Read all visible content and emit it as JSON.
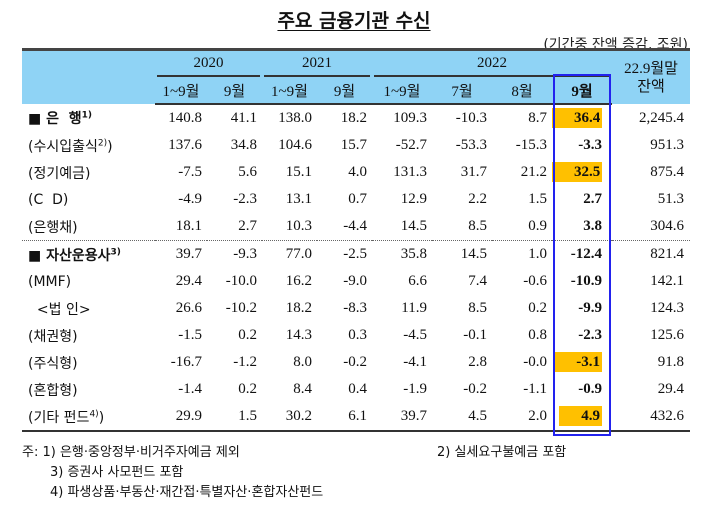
{
  "title": "주요 금융기관 수신",
  "unit": "(기간중 잔액 증감, 조원)",
  "header": {
    "years": [
      "2020",
      "2021",
      "2022"
    ],
    "balance": "22.9월말 잔액",
    "periods": [
      "1~9월",
      "9월",
      "1~9월",
      "9월",
      "1~9월",
      "7월",
      "8월",
      "9월"
    ]
  },
  "rows": [
    {
      "label": "■ 은  행",
      "sup": "1)",
      "group": true,
      "values": [
        "140.8",
        "41.1",
        "138.0",
        "18.2",
        "109.3",
        "-10.3",
        "8.7",
        "36.4",
        "2,245.4"
      ],
      "highlight": true
    },
    {
      "label": "(수시입출식",
      "sup": "2)",
      "label_end": ")",
      "values": [
        "137.6",
        "34.8",
        "104.6",
        "15.7",
        "-52.7",
        "-53.3",
        "-15.3",
        "-3.3",
        "951.3"
      ]
    },
    {
      "label": "(정기예금)",
      "values": [
        "-7.5",
        "5.6",
        "15.1",
        "4.0",
        "131.3",
        "31.7",
        "21.2",
        "32.5",
        "875.4"
      ],
      "highlight": true
    },
    {
      "label": "(C  D)",
      "values": [
        "-4.9",
        "-2.3",
        "13.1",
        "0.7",
        "12.9",
        "2.2",
        "1.5",
        "2.7",
        "51.3"
      ]
    },
    {
      "label": "(은행채)",
      "values": [
        "18.1",
        "2.7",
        "10.3",
        "-4.4",
        "14.5",
        "8.5",
        "0.9",
        "3.8",
        "304.6"
      ]
    },
    {
      "label": "■ 자산운용사",
      "sup": "3)",
      "group": true,
      "sep": true,
      "values": [
        "39.7",
        "-9.3",
        "77.0",
        "-2.5",
        "35.8",
        "14.5",
        "1.0",
        "-12.4",
        "821.4"
      ]
    },
    {
      "label": "(MMF)",
      "values": [
        "29.4",
        "-10.0",
        "16.2",
        "-9.0",
        "6.6",
        "7.4",
        "-0.6",
        "-10.9",
        "142.1"
      ]
    },
    {
      "label": "  <법 인>",
      "values": [
        "26.6",
        "-10.2",
        "18.2",
        "-8.3",
        "11.9",
        "8.5",
        "0.2",
        "-9.9",
        "124.3"
      ]
    },
    {
      "label": "(채권형)",
      "values": [
        "-1.5",
        "0.2",
        "14.3",
        "0.3",
        "-4.5",
        "-0.1",
        "0.8",
        "-2.3",
        "125.6"
      ]
    },
    {
      "label": "(주식형)",
      "values": [
        "-16.7",
        "-1.2",
        "8.0",
        "-0.2",
        "-4.1",
        "2.8",
        "-0.0",
        "-3.1",
        "91.8"
      ],
      "highlight": true
    },
    {
      "label": "(혼합형)",
      "values": [
        "-1.4",
        "0.2",
        "8.4",
        "0.4",
        "-1.9",
        "-0.2",
        "-1.1",
        "-0.9",
        "29.4"
      ]
    },
    {
      "label": "(기타 펀드",
      "sup": "4)",
      "label_end": ")",
      "values": [
        "29.9",
        "1.5",
        "30.2",
        "6.1",
        "39.7",
        "4.5",
        "2.0",
        "4.9",
        "432.6"
      ],
      "highlight": true
    }
  ],
  "notes": {
    "n1": "주: 1) 은행·중앙정부·비거주자예금 제외",
    "n2": "2) 실세요구불예금 포함",
    "n3": "3) 증권사 사모펀드 포함",
    "n4": "4) 파생상품·부동산·재간접·특별자산·혼합자산펀드"
  },
  "colors": {
    "header_bg": "#8fd3f5",
    "highlight": "#ffc000",
    "box": "#2222ee"
  }
}
